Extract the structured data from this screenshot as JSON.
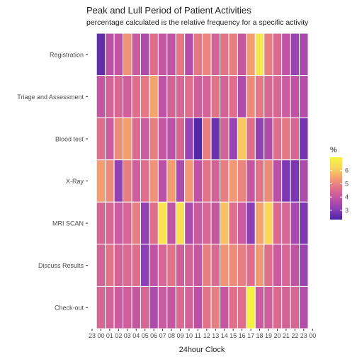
{
  "chart_data": {
    "type": "heatmap",
    "title": "Peak and Lull Period of Patient Activities",
    "subtitle": "percentage calculated is the relative frequency for a specific activity",
    "xlabel": "24hour Clock",
    "ylabel": "",
    "x_ticks": [
      "23",
      "00",
      "01",
      "02",
      "03",
      "04",
      "05",
      "06",
      "07",
      "08",
      "09",
      "10",
      "11",
      "12",
      "13",
      "14",
      "15",
      "16",
      "17",
      "18",
      "19",
      "20",
      "21",
      "22",
      "23",
      "00"
    ],
    "hours": [
      "00",
      "01",
      "02",
      "03",
      "04",
      "05",
      "06",
      "07",
      "08",
      "09",
      "10",
      "11",
      "12",
      "13",
      "14",
      "15",
      "16",
      "17",
      "18",
      "19",
      "20",
      "21",
      "22",
      "23"
    ],
    "rows": [
      "Registration",
      "Triage and Assessment",
      "Blood test",
      "X-Ray",
      "MRI SCAN",
      "Discuss Results",
      "Check-out"
    ],
    "values": [
      [
        2.6,
        3.8,
        3.9,
        5.2,
        4.1,
        3.6,
        4.6,
        4.0,
        3.9,
        4.8,
        3.7,
        4.8,
        5.0,
        4.3,
        4.7,
        4.9,
        4.0,
        5.4,
        6.6,
        4.9,
        4.5,
        3.9,
        3.3,
        3.5
      ],
      [
        4.0,
        4.3,
        4.4,
        4.2,
        4.6,
        4.8,
        5.5,
        3.9,
        4.3,
        4.4,
        4.6,
        4.2,
        4.3,
        4.7,
        4.3,
        4.6,
        3.6,
        5.1,
        4.8,
        4.4,
        4.4,
        4.1,
        3.9,
        3.7
      ],
      [
        4.6,
        4.1,
        5.1,
        5.4,
        4.5,
        4.1,
        4.9,
        4.0,
        3.8,
        4.4,
        3.3,
        2.4,
        4.9,
        2.7,
        4.3,
        3.3,
        6.0,
        4.6,
        3.2,
        3.6,
        4.6,
        4.8,
        4.4,
        2.8
      ],
      [
        5.4,
        5.1,
        3.2,
        4.9,
        4.2,
        4.6,
        5.2,
        3.8,
        5.4,
        3.6,
        5.3,
        3.9,
        4.7,
        4.3,
        4.9,
        5.3,
        5.0,
        4.0,
        4.7,
        5.1,
        3.8,
        2.9,
        2.9,
        3.6
      ],
      [
        4.4,
        4.4,
        4.1,
        4.4,
        4.9,
        3.2,
        4.6,
        6.5,
        3.9,
        6.4,
        3.6,
        4.1,
        4.4,
        4.0,
        5.9,
        4.6,
        4.1,
        3.1,
        5.5,
        6.2,
        4.5,
        4.4,
        3.5,
        2.9
      ],
      [
        4.3,
        4.7,
        4.3,
        4.5,
        4.6,
        3.1,
        3.9,
        4.4,
        4.7,
        4.2,
        4.3,
        4.0,
        4.9,
        4.5,
        5.2,
        5.1,
        4.9,
        4.6,
        5.3,
        4.6,
        4.1,
        4.4,
        3.9,
        3.3
      ],
      [
        4.4,
        4.3,
        4.1,
        4.2,
        4.0,
        4.4,
        3.6,
        4.1,
        4.0,
        4.5,
        4.3,
        3.8,
        4.7,
        4.9,
        4.0,
        4.6,
        4.6,
        6.9,
        4.1,
        4.2,
        4.5,
        4.3,
        4.4,
        3.7
      ]
    ],
    "legend": {
      "title": "%",
      "ticks": [
        3,
        4,
        5,
        6
      ],
      "min": 2.3,
      "max": 7.0,
      "position": "right"
    },
    "colors": [
      "#4a23a6",
      "#8b3fb6",
      "#c052a6",
      "#e0708a",
      "#f4a070",
      "#f9d85c",
      "#f4f542"
    ],
    "grid": false
  }
}
